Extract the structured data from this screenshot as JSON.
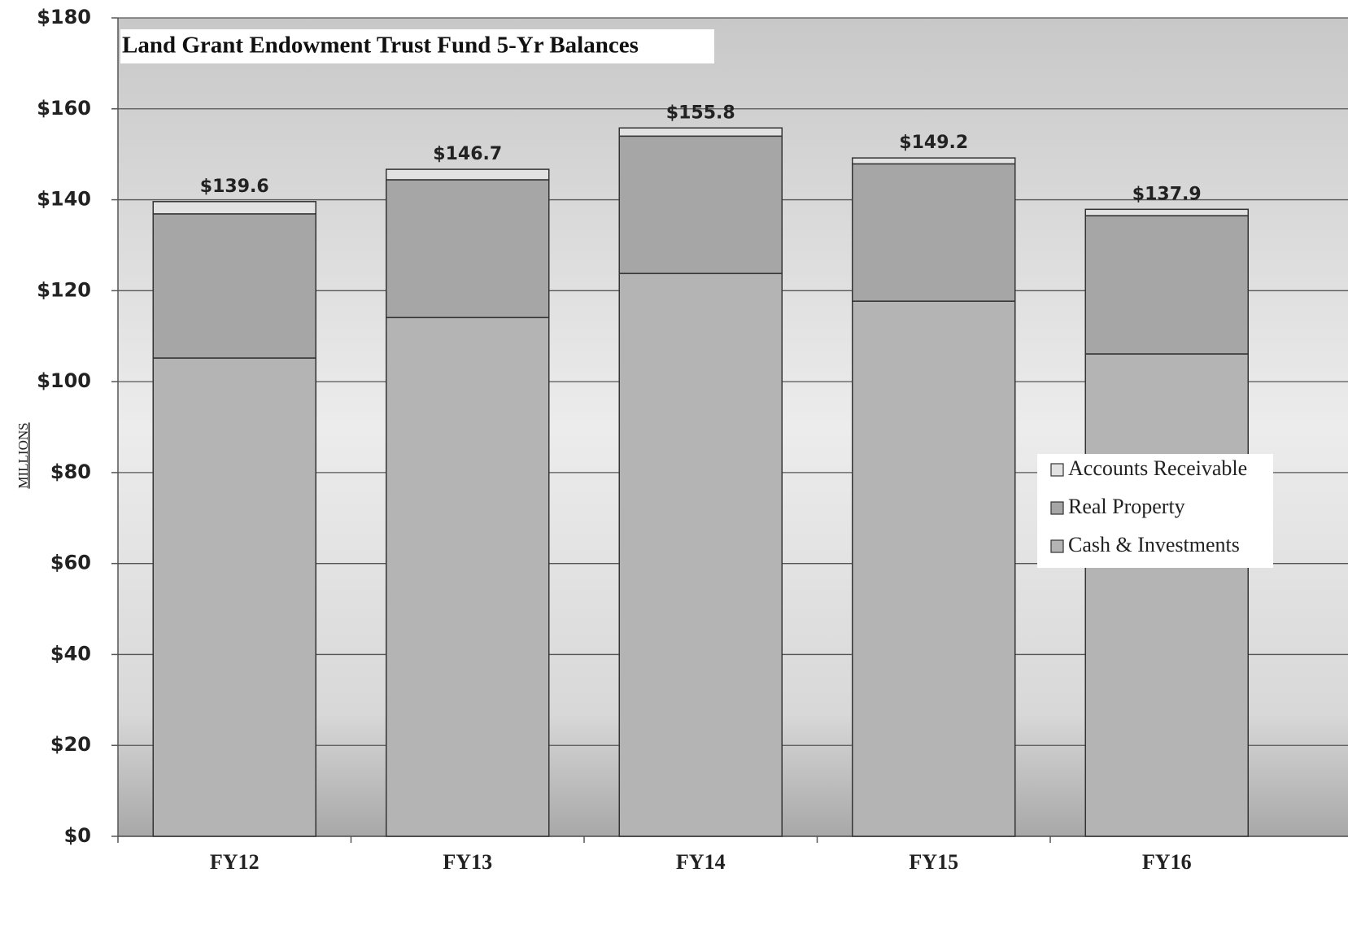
{
  "chart_data": {
    "type": "stacked_bar",
    "title": "Land Grant Endowment Trust Fund 5-Yr Balances",
    "y_label": "MILLIONS",
    "categories": [
      "FY12",
      "FY13",
      "FY14",
      "FY15",
      "FY16"
    ],
    "series": [
      {
        "name": "Cash & Investments",
        "color": "#b4b4b4",
        "values": [
          105.2,
          114.1,
          123.8,
          117.7,
          106.1
        ]
      },
      {
        "name": "Real Property",
        "color": "#a6a6a6",
        "values": [
          31.7,
          30.3,
          30.2,
          30.2,
          30.4
        ]
      },
      {
        "name": "Accounts Receivable",
        "color": "#e2e2e2",
        "values": [
          2.7,
          2.3,
          1.8,
          1.3,
          1.4
        ]
      }
    ],
    "totals": [
      139.6,
      146.7,
      155.8,
      149.2,
      137.9
    ],
    "total_labels": [
      "$139.6",
      "$146.7",
      "$155.8",
      "$149.2",
      "$137.9"
    ],
    "ylim": [
      0,
      180
    ],
    "yticks": [
      {
        "value": 0,
        "label": "$0"
      },
      {
        "value": 20,
        "label": "$20"
      },
      {
        "value": 40,
        "label": "$40"
      },
      {
        "value": 60,
        "label": "$60"
      },
      {
        "value": 80,
        "label": "$80"
      },
      {
        "value": 100,
        "label": "$100"
      },
      {
        "value": 120,
        "label": "$120"
      },
      {
        "value": 140,
        "label": "$140"
      },
      {
        "value": 160,
        "label": "$160"
      },
      {
        "value": 180,
        "label": "$180"
      }
    ],
    "grid": true,
    "legend": "right"
  }
}
